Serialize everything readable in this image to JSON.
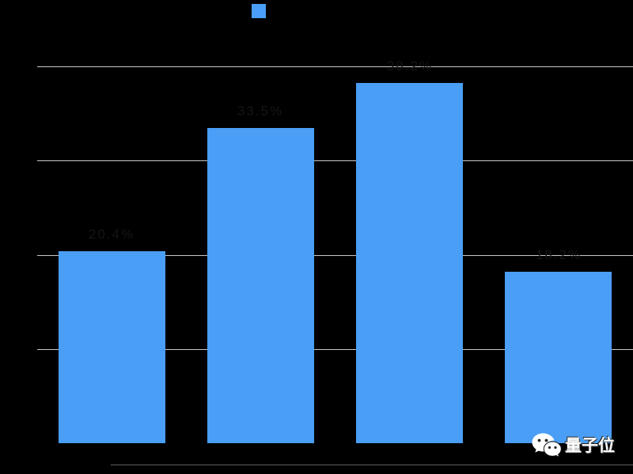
{
  "chart": {
    "background": "#000000",
    "colors": {
      "bar": "#4A9EF5",
      "gridline": "#C8C8C8",
      "value_label": "#151515",
      "watermark_text": "#FFFFFF",
      "baseline_rule": "#ABABAB"
    },
    "legend": {
      "swatch_color": "#4A9EF5",
      "label": ""
    }
  },
  "chart_data": {
    "type": "bar",
    "categories": [
      "",
      "",
      "",
      ""
    ],
    "values": [
      2.04,
      3.35,
      3.82,
      1.82
    ],
    "bar_labels": [
      "20.4%",
      "33.5%",
      "38.2%",
      "18.2%"
    ],
    "title": "",
    "xlabel": "",
    "ylabel": "",
    "ylim": [
      0,
      4
    ],
    "gridlines": [
      1,
      2,
      3,
      4
    ],
    "grid": "on",
    "legend_position": "top-center",
    "labels_legibility": "axis ticks, categories, title, legend text and value labels are drawn in near-black on a black background and are illegible; values estimated from gridline spacing"
  },
  "watermark": {
    "brand": "量子位",
    "icon": "wechat-icon"
  }
}
